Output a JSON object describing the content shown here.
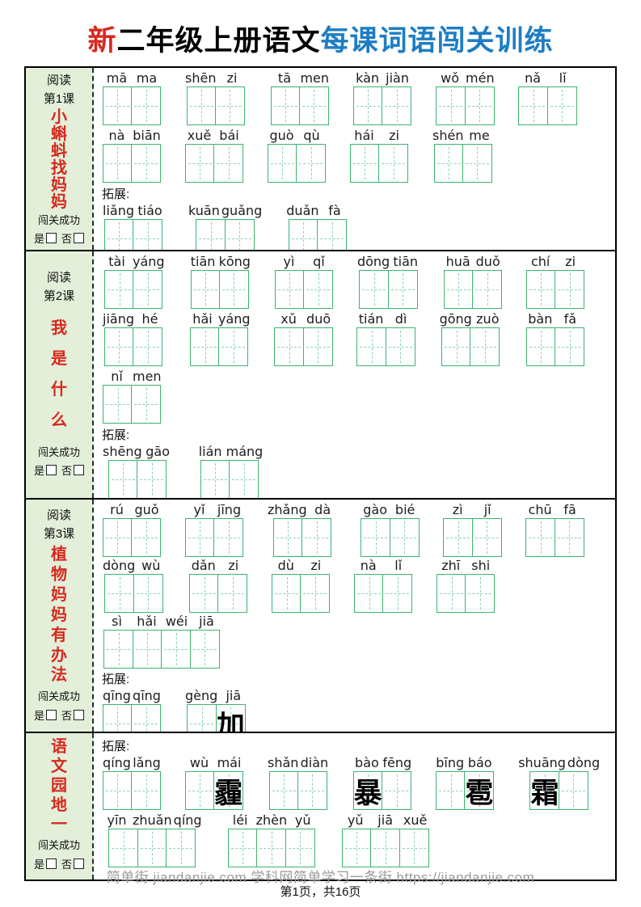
{
  "title": {
    "prefix": "新",
    "middle": "二年级上册语文",
    "suffix": "每课词语闯关训练"
  },
  "colors": {
    "accent_red": "#d7281e",
    "accent_blue": "#1d7dc4",
    "grid_green": "#3cb371",
    "grid_dash_green": "#8ad2b4",
    "sidebar_green": "#e3efd9"
  },
  "footer": {
    "watermark": "简单街 jiandanjie.com 学科网简单学习一条街 https://jiandanjie.com",
    "page": "第1页，共16页"
  },
  "rows": [
    {
      "reading_label": "阅读",
      "lesson_label": "第1课",
      "lesson_title": "小蝌蚪找妈妈",
      "pass_label": "闯关成功",
      "yes_label": "是",
      "no_label": "否",
      "blocks": [
        {
          "label": null,
          "lines": [
            [
              {
                "pinyin": [
                  "mā",
                  "ma"
                ]
              },
              {
                "pinyin": [
                  "shēn",
                  "zi"
                ]
              },
              {
                "pinyin": [
                  "tā",
                  "men"
                ]
              },
              {
                "pinyin": [
                  "kàn",
                  "jiàn"
                ]
              },
              {
                "pinyin": [
                  "wǒ",
                  "mén"
                ]
              },
              {
                "pinyin": [
                  "nǎ",
                  "lǐ"
                ]
              }
            ],
            [
              {
                "pinyin": [
                  "nà",
                  "biān"
                ]
              },
              {
                "pinyin": [
                  "xuě",
                  "bái"
                ]
              },
              {
                "pinyin": [
                  "guò",
                  "qù"
                ]
              },
              {
                "pinyin": [
                  "hái",
                  "zi"
                ]
              },
              {
                "pinyin": [
                  "shén",
                  "me"
                ]
              }
            ]
          ]
        },
        {
          "label": "拓展:",
          "lines": [
            [
              {
                "pinyin": [
                  "liǎng",
                  "tiáo"
                ]
              },
              {
                "pinyin": [
                  "kuān",
                  "guǎng"
                ]
              },
              {
                "pinyin": [
                  "duǎn",
                  "fà"
                ]
              }
            ]
          ]
        }
      ]
    },
    {
      "reading_label": "阅读",
      "lesson_label": "第2课",
      "lesson_title": "我是什么",
      "pass_label": "闯关成功",
      "yes_label": "是",
      "no_label": "否",
      "blocks": [
        {
          "label": null,
          "lines": [
            [
              {
                "pinyin": [
                  "tài",
                  "yáng"
                ]
              },
              {
                "pinyin": [
                  "tiān",
                  "kōng"
                ]
              },
              {
                "pinyin": [
                  "yì",
                  "qǐ"
                ]
              },
              {
                "pinyin": [
                  "dōng",
                  "tiān"
                ]
              },
              {
                "pinyin": [
                  "huā",
                  "duǒ"
                ]
              },
              {
                "pinyin": [
                  "chí",
                  "zi"
                ]
              }
            ],
            [
              {
                "pinyin": [
                  "jiāng",
                  "hé"
                ]
              },
              {
                "pinyin": [
                  "hǎi",
                  "yáng"
                ]
              },
              {
                "pinyin": [
                  "xǔ",
                  "duō"
                ]
              },
              {
                "pinyin": [
                  "tián",
                  "dì"
                ]
              },
              {
                "pinyin": [
                  "gōng",
                  "zuò"
                ]
              },
              {
                "pinyin": [
                  "bàn",
                  "fǎ"
                ]
              }
            ],
            [
              {
                "pinyin": [
                  "nǐ",
                  "men"
                ]
              }
            ]
          ]
        },
        {
          "label": "拓展:",
          "lines": [
            [
              {
                "pinyin": [
                  "shēng",
                  "gāo"
                ]
              },
              {
                "pinyin": [
                  "lián",
                  "máng"
                ]
              }
            ]
          ]
        }
      ]
    },
    {
      "reading_label": "阅读",
      "lesson_label": "第3课",
      "lesson_title": "植物妈妈有办法",
      "pass_label": "闯关成功",
      "yes_label": "是",
      "no_label": "否",
      "blocks": [
        {
          "label": null,
          "lines": [
            [
              {
                "pinyin": [
                  "rú",
                  "guǒ"
                ]
              },
              {
                "pinyin": [
                  "yǐ",
                  "jīng"
                ]
              },
              {
                "pinyin": [
                  "zhǎng",
                  "dà"
                ]
              },
              {
                "pinyin": [
                  "gào",
                  "bié"
                ]
              },
              {
                "pinyin": [
                  "zì",
                  "jǐ"
                ]
              },
              {
                "pinyin": [
                  "chū",
                  "fā"
                ]
              }
            ],
            [
              {
                "pinyin": [
                  "dòng",
                  "wù"
                ]
              },
              {
                "pinyin": [
                  "dǎn",
                  "zi"
                ]
              },
              {
                "pinyin": [
                  "dù",
                  "zi"
                ]
              },
              {
                "pinyin": [
                  "nà",
                  "lǐ"
                ]
              },
              {
                "pinyin": [
                  "zhī",
                  "shi"
                ]
              }
            ],
            [
              {
                "pinyin": [
                  "sì",
                  "hǎi",
                  "wéi",
                  "jiā"
                ]
              }
            ]
          ]
        },
        {
          "label": "拓展:",
          "lines": [
            [
              {
                "pinyin": [
                  "qīng",
                  "qīng"
                ]
              },
              {
                "pinyin": [
                  "gèng",
                  "jiā"
                ],
                "chars": [
                  "",
                  "加"
                ]
              }
            ]
          ]
        }
      ]
    },
    {
      "reading_label": null,
      "lesson_label": null,
      "lesson_title": "语文园地一",
      "pass_label": "闯关成功",
      "yes_label": "是",
      "no_label": "否",
      "blocks": [
        {
          "label": "拓展:",
          "lines": [
            [
              {
                "pinyin": [
                  "qíng",
                  "lǎng"
                ]
              },
              {
                "pinyin": [
                  "wù",
                  "mái"
                ],
                "chars": [
                  "",
                  "霾"
                ]
              },
              {
                "pinyin": [
                  "shǎn",
                  "diàn"
                ]
              },
              {
                "pinyin": [
                  "bào",
                  "fēng"
                ],
                "chars": [
                  "暴",
                  ""
                ]
              },
              {
                "pinyin": [
                  "bīng",
                  "báo"
                ],
                "chars": [
                  "",
                  "雹"
                ]
              },
              {
                "pinyin": [
                  "shuāng",
                  "dòng"
                ],
                "chars": [
                  "霜",
                  ""
                ]
              }
            ],
            [
              {
                "pinyin": [
                  "yīn",
                  "zhuǎn",
                  "qíng"
                ]
              },
              {
                "pinyin": [
                  "léi",
                  "zhèn",
                  "yǔ"
                ]
              },
              {
                "pinyin": [
                  "yǔ",
                  "jiā",
                  "xuě"
                ]
              }
            ]
          ]
        }
      ]
    }
  ]
}
